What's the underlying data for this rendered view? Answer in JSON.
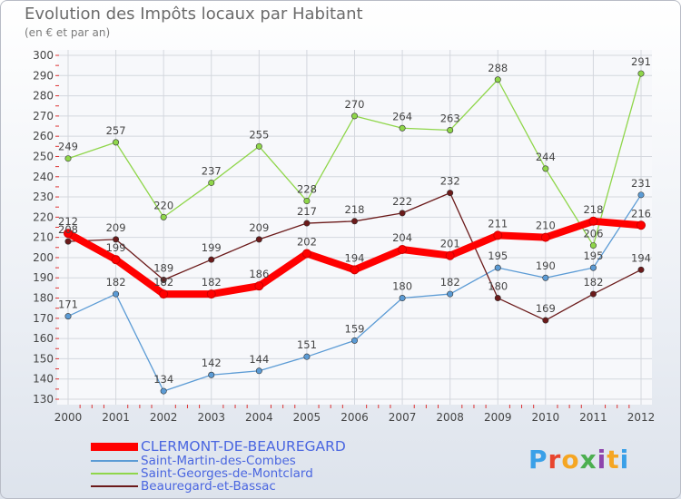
{
  "title": "Evolution des Impôts locaux par Habitant",
  "subtitle": "(en € et par an)",
  "logo": "Proxiti",
  "chart_data": {
    "type": "line",
    "title": "Evolution des Impôts locaux par Habitant",
    "subtitle": "(en € et par an)",
    "x": [
      "2000",
      "2001",
      "2002",
      "2003",
      "2004",
      "2005",
      "2006",
      "2007",
      "2008",
      "2009",
      "2010",
      "2011",
      "2012"
    ],
    "ylim": [
      130,
      300
    ],
    "yticks": [
      130,
      140,
      150,
      160,
      170,
      180,
      190,
      200,
      210,
      220,
      230,
      240,
      250,
      260,
      270,
      280,
      290,
      300
    ],
    "grid": true,
    "legend_position": "bottom-left",
    "series": [
      {
        "name": "CLERMONT-DE-BEAUREGARD",
        "color": "#ff0000",
        "values": [
          212,
          199,
          182,
          182,
          186,
          202,
          194,
          204,
          201,
          211,
          210,
          218,
          216
        ]
      },
      {
        "name": "Saint-Martin-des-Combes",
        "color": "#5b9bd5",
        "values": [
          171,
          182,
          134,
          142,
          144,
          151,
          159,
          180,
          182,
          195,
          190,
          195,
          231
        ]
      },
      {
        "name": "Saint-Georges-de-Montclard",
        "color": "#8fd64a",
        "values": [
          249,
          257,
          220,
          237,
          255,
          228,
          270,
          264,
          263,
          288,
          244,
          206,
          291
        ]
      },
      {
        "name": "Beauregard-et-Bassac",
        "color": "#6b1a1a",
        "values": [
          208,
          209,
          189,
          199,
          209,
          217,
          218,
          222,
          232,
          180,
          169,
          182,
          194
        ]
      }
    ]
  }
}
